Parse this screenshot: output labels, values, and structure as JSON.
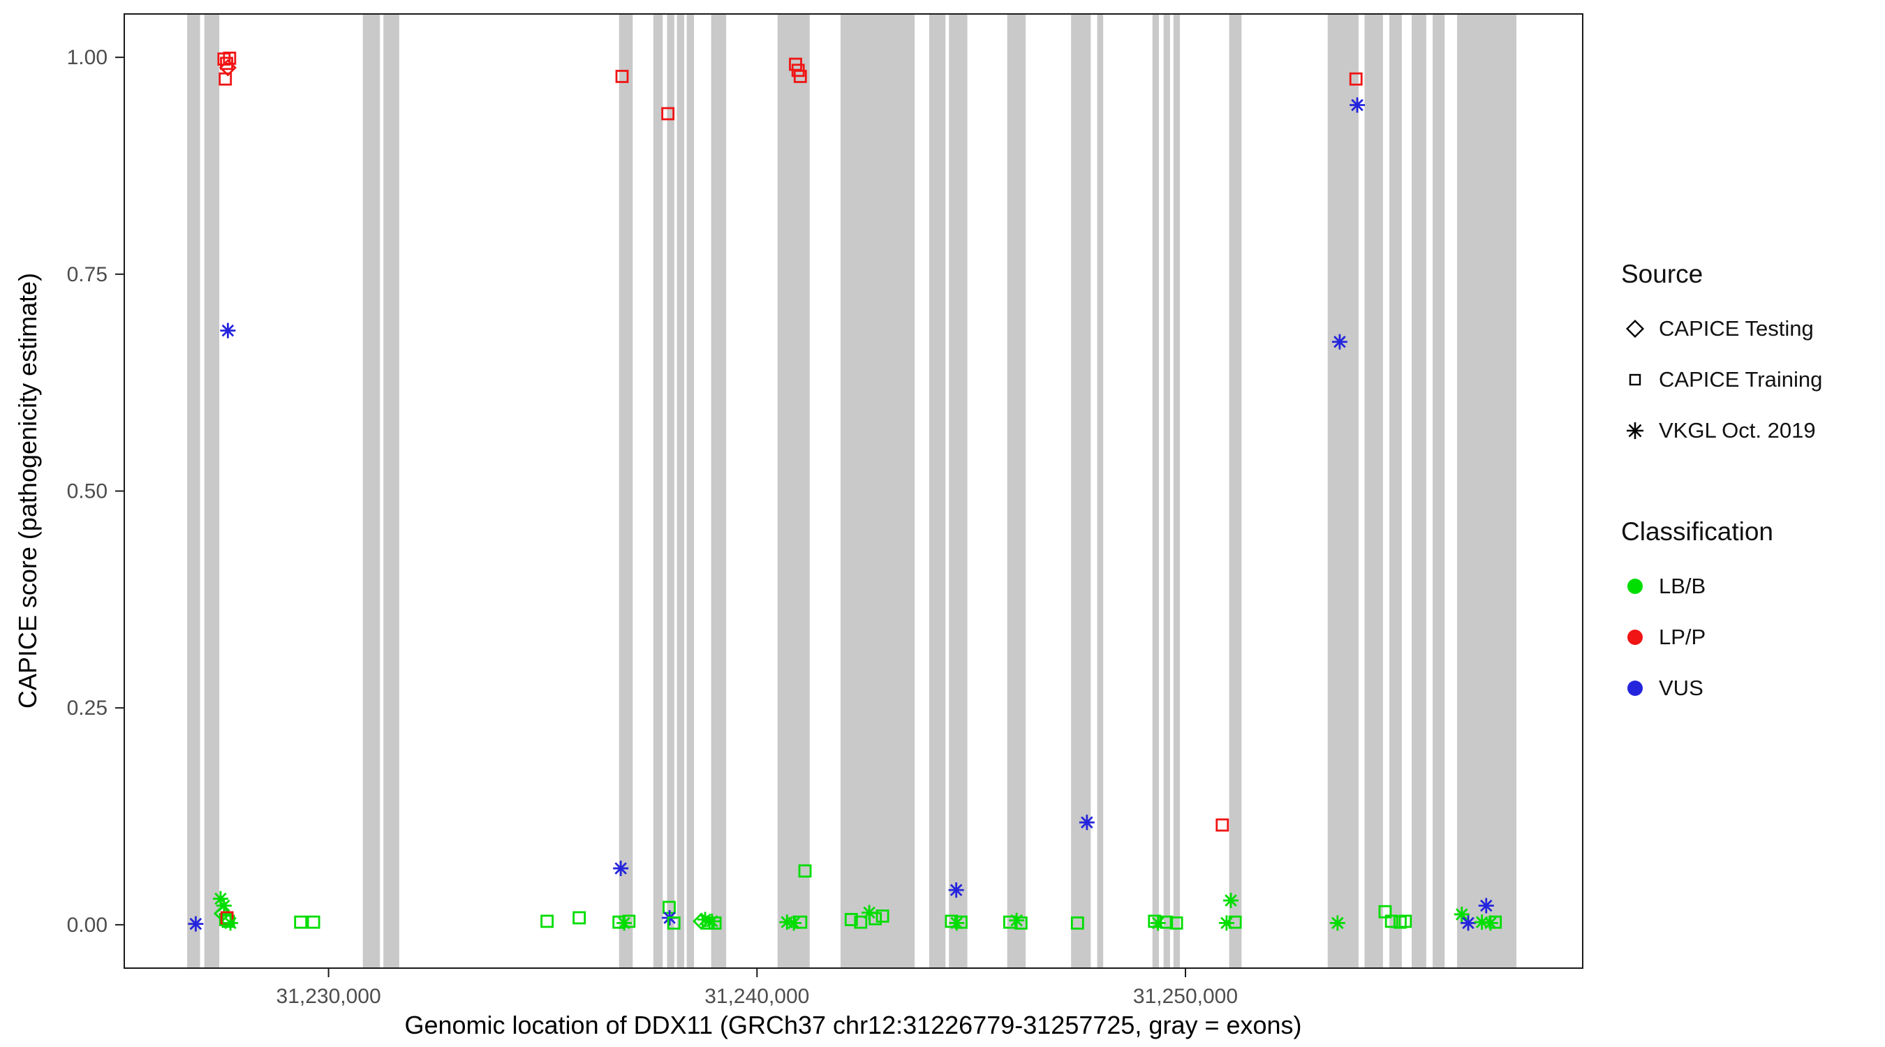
{
  "chart_data": {
    "type": "scatter",
    "title": "",
    "xlabel": "Genomic location of DDX11 (GRCh37 chr12:31226779-31257725, gray = exons)",
    "ylabel": "CAPICE score (pathogenicity estimate)",
    "x_domain": [
      31225232,
      31259272
    ],
    "y_domain": [
      -0.05,
      1.05
    ],
    "grid": false,
    "legend_position": "right",
    "x_ticks": [
      {
        "value": 31230000,
        "label": "31,230,000"
      },
      {
        "value": 31240000,
        "label": "31,240,000"
      },
      {
        "value": 31250000,
        "label": "31,250,000"
      }
    ],
    "y_ticks": [
      {
        "value": 0.0,
        "label": "0.00"
      },
      {
        "value": 0.25,
        "label": "0.25"
      },
      {
        "value": 0.5,
        "label": "0.50"
      },
      {
        "value": 0.75,
        "label": "0.75"
      },
      {
        "value": 1.0,
        "label": "1.00"
      }
    ],
    "exon_color": "#c9c9c9",
    "axis_color": "#1a1a1a",
    "tick_label_color": "#4d4d4d",
    "colors": {
      "LB/B": "#00dd00",
      "LP/P": "#f01414",
      "VUS": "#2424dd"
    },
    "shapes": {
      "testing": "diamond",
      "training": "square",
      "vkgl": "asterisk"
    },
    "legend": {
      "source_title": "Source",
      "source_items": [
        {
          "label": "CAPICE Testing",
          "shape": "diamond"
        },
        {
          "label": "CAPICE Training",
          "shape": "square"
        },
        {
          "label": "VKGL Oct. 2019",
          "shape": "asterisk"
        }
      ],
      "classification_title": "Classification",
      "classification_items": [
        {
          "label": "LB/B",
          "color": "#00dd00"
        },
        {
          "label": "LP/P",
          "color": "#f01414"
        },
        {
          "label": "VUS",
          "color": "#2424dd"
        }
      ]
    },
    "exons": [
      [
        31226700,
        31227000
      ],
      [
        31227100,
        31227450
      ],
      [
        31230800,
        31231200
      ],
      [
        31231280,
        31231650
      ],
      [
        31236780,
        31237100
      ],
      [
        31237580,
        31237800
      ],
      [
        31237900,
        31238070
      ],
      [
        31238130,
        31238300
      ],
      [
        31238360,
        31238530
      ],
      [
        31238930,
        31239280
      ],
      [
        31240480,
        31241230
      ],
      [
        31241950,
        31243680
      ],
      [
        31244020,
        31244400
      ],
      [
        31244480,
        31244910
      ],
      [
        31245840,
        31246270
      ],
      [
        31247330,
        31247790
      ],
      [
        31247940,
        31248080
      ],
      [
        31249230,
        31249380
      ],
      [
        31249490,
        31249640
      ],
      [
        31249720,
        31249870
      ],
      [
        31251020,
        31251310
      ],
      [
        31253320,
        31254040
      ],
      [
        31254180,
        31254610
      ],
      [
        31254760,
        31255050
      ],
      [
        31255280,
        31255620
      ],
      [
        31255770,
        31256050
      ],
      [
        31256340,
        31257725
      ]
    ],
    "point_fields": [
      "x",
      "y",
      "classification",
      "source"
    ],
    "points": [
      [
        31226900,
        0.001,
        "VUS",
        "vkgl"
      ],
      [
        31227480,
        0.03,
        "LB/B",
        "vkgl"
      ],
      [
        31227560,
        0.022,
        "LB/B",
        "vkgl"
      ],
      [
        31227520,
        0.013,
        "LB/B",
        "testing"
      ],
      [
        31227600,
        0.006,
        "LB/B",
        "training"
      ],
      [
        31227660,
        0.004,
        "LB/B",
        "training"
      ],
      [
        31227630,
        0.008,
        "LP/P",
        "training"
      ],
      [
        31227710,
        0.002,
        "LB/B",
        "vkgl"
      ],
      [
        31227560,
        0.998,
        "LP/P",
        "training"
      ],
      [
        31227620,
        0.993,
        "LP/P",
        "training"
      ],
      [
        31227690,
        0.999,
        "LP/P",
        "training"
      ],
      [
        31227650,
        0.988,
        "LP/P",
        "testing"
      ],
      [
        31227590,
        0.975,
        "LP/P",
        "training"
      ],
      [
        31227650,
        0.685,
        "VUS",
        "vkgl"
      ],
      [
        31229350,
        0.003,
        "LB/B",
        "training"
      ],
      [
        31229650,
        0.003,
        "LB/B",
        "training"
      ],
      [
        31235100,
        0.004,
        "LB/B",
        "training"
      ],
      [
        31235850,
        0.008,
        "LB/B",
        "training"
      ],
      [
        31236850,
        0.978,
        "LP/P",
        "training"
      ],
      [
        31236820,
        0.065,
        "VUS",
        "vkgl"
      ],
      [
        31236780,
        0.003,
        "LB/B",
        "training"
      ],
      [
        31236900,
        0.002,
        "LB/B",
        "vkgl"
      ],
      [
        31237010,
        0.004,
        "LB/B",
        "training"
      ],
      [
        31237920,
        0.935,
        "LP/P",
        "training"
      ],
      [
        31237950,
        0.02,
        "LB/B",
        "training"
      ],
      [
        31237960,
        0.008,
        "VUS",
        "vkgl"
      ],
      [
        31238060,
        0.002,
        "LB/B",
        "training"
      ],
      [
        31238700,
        0.004,
        "LB/B",
        "testing"
      ],
      [
        31238790,
        0.006,
        "LB/B",
        "vkgl"
      ],
      [
        31238860,
        0.002,
        "LB/B",
        "training"
      ],
      [
        31238950,
        0.004,
        "LB/B",
        "vkgl"
      ],
      [
        31239020,
        0.002,
        "LB/B",
        "training"
      ],
      [
        31240900,
        0.992,
        "LP/P",
        "training"
      ],
      [
        31240960,
        0.985,
        "LP/P",
        "training"
      ],
      [
        31241010,
        0.978,
        "LP/P",
        "training"
      ],
      [
        31241120,
        0.062,
        "LB/B",
        "training"
      ],
      [
        31240700,
        0.003,
        "LB/B",
        "vkgl"
      ],
      [
        31240860,
        0.002,
        "LB/B",
        "vkgl"
      ],
      [
        31241020,
        0.003,
        "LB/B",
        "training"
      ],
      [
        31242200,
        0.006,
        "LB/B",
        "training"
      ],
      [
        31242420,
        0.003,
        "LB/B",
        "training"
      ],
      [
        31242620,
        0.014,
        "LB/B",
        "vkgl"
      ],
      [
        31242760,
        0.007,
        "LB/B",
        "training"
      ],
      [
        31242930,
        0.01,
        "LB/B",
        "training"
      ],
      [
        31244650,
        0.04,
        "VUS",
        "vkgl"
      ],
      [
        31244540,
        0.004,
        "LB/B",
        "training"
      ],
      [
        31244660,
        0.002,
        "LB/B",
        "vkgl"
      ],
      [
        31244760,
        0.003,
        "LB/B",
        "training"
      ],
      [
        31245900,
        0.003,
        "LB/B",
        "training"
      ],
      [
        31246060,
        0.005,
        "LB/B",
        "vkgl"
      ],
      [
        31246160,
        0.002,
        "LB/B",
        "training"
      ],
      [
        31247700,
        0.118,
        "VUS",
        "vkgl"
      ],
      [
        31247480,
        0.002,
        "LB/B",
        "training"
      ],
      [
        31249280,
        0.004,
        "LB/B",
        "training"
      ],
      [
        31249360,
        0.002,
        "LB/B",
        "vkgl"
      ],
      [
        31249560,
        0.003,
        "LB/B",
        "training"
      ],
      [
        31249790,
        0.002,
        "LB/B",
        "training"
      ],
      [
        31250860,
        0.115,
        "LP/P",
        "training"
      ],
      [
        31251060,
        0.028,
        "LB/B",
        "vkgl"
      ],
      [
        31251160,
        0.003,
        "LB/B",
        "training"
      ],
      [
        31250960,
        0.002,
        "LB/B",
        "vkgl"
      ],
      [
        31253600,
        0.672,
        "VUS",
        "vkgl"
      ],
      [
        31254010,
        0.945,
        "VUS",
        "vkgl"
      ],
      [
        31253980,
        0.975,
        "LP/P",
        "training"
      ],
      [
        31253550,
        0.002,
        "LB/B",
        "vkgl"
      ],
      [
        31254660,
        0.015,
        "LB/B",
        "training"
      ],
      [
        31254810,
        0.004,
        "LB/B",
        "training"
      ],
      [
        31255010,
        0.003,
        "LB/B",
        "training"
      ],
      [
        31255130,
        0.004,
        "LB/B",
        "training"
      ],
      [
        31256450,
        0.012,
        "LB/B",
        "vkgl"
      ],
      [
        31256600,
        0.002,
        "VUS",
        "vkgl"
      ],
      [
        31257020,
        0.022,
        "VUS",
        "vkgl"
      ],
      [
        31256920,
        0.003,
        "LB/B",
        "vkgl"
      ],
      [
        31257120,
        0.002,
        "LB/B",
        "vkgl"
      ],
      [
        31257230,
        0.003,
        "LB/B",
        "training"
      ]
    ]
  }
}
